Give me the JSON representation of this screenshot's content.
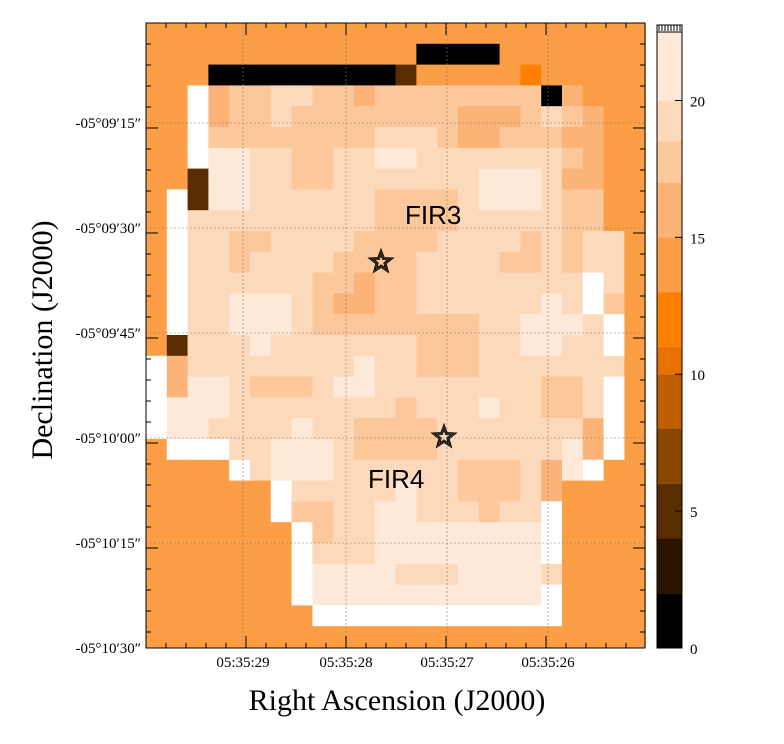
{
  "chart_data": {
    "type": "heatmap",
    "title": "",
    "xlabel": "Right Ascension (J2000)",
    "ylabel": "Declination (J2000)",
    "x_ticks": [
      "05:35:29",
      "05:35:28",
      "05:35:27",
      "05:35:26"
    ],
    "y_ticks": [
      "-05°09′15″",
      "-05°09′30″",
      "-05°09′45″",
      "-05°10′00″",
      "-05°10′15″",
      "-05°10′30″"
    ],
    "grid": true,
    "background_value": 13.5,
    "colorbar": {
      "range": [
        0,
        22.5
      ],
      "ticks": [
        "0",
        "5",
        "10",
        "15",
        "20"
      ],
      "tick_values": [
        0,
        5,
        10,
        15,
        20
      ],
      "bins": 12,
      "colors": [
        "#000000",
        "#2b1400",
        "#5a2d00",
        "#8a4500",
        "#bd5e00",
        "#e87200",
        "#ff7f00",
        "#fb9e45",
        "#fbb377",
        "#fcc79b",
        "#fdd9bb",
        "#fee9d8"
      ],
      "top_color": "#ffffff",
      "bin_edges": [
        0,
        2,
        4,
        6,
        8,
        10,
        11,
        13,
        15,
        17,
        18.5,
        20,
        22.5
      ]
    },
    "sources": [
      {
        "name": "FIR3",
        "ra": "05:35:27.7",
        "dec": "-05°09′34″"
      },
      {
        "name": "FIR4",
        "ra": "05:35:27.1",
        "dec": "-05°10′00″"
      }
    ],
    "annotations": [
      "FIR3",
      "FIR4"
    ]
  }
}
